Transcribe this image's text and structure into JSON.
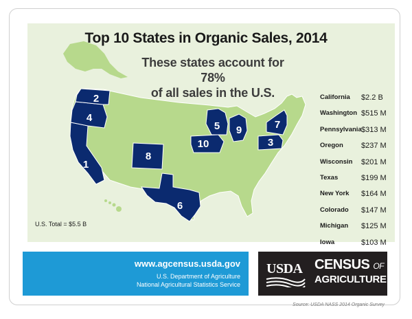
{
  "title": "Top 10 States in Organic Sales, 2014",
  "subtitle_line1": "These states account for 78%",
  "subtitle_line2": "of all sales in the U.S.",
  "colors": {
    "highlight": "#0b2a6f",
    "land": "#b7d98c",
    "banner": "#1e9ad6",
    "census_box": "#231f20"
  },
  "rankings": [
    {
      "rank": "1",
      "state": "California",
      "value": "$2.2 B"
    },
    {
      "rank": "2",
      "state": "Washington",
      "value": "$515 M"
    },
    {
      "rank": "3",
      "state": "Pennsylvania",
      "value": "$313 M"
    },
    {
      "rank": "4",
      "state": "Oregon",
      "value": "$237 M"
    },
    {
      "rank": "5",
      "state": "Wisconsin",
      "value": "$201 M"
    },
    {
      "rank": "6",
      "state": "Texas",
      "value": "$199 M"
    },
    {
      "rank": "7",
      "state": "New York",
      "value": "$164 M"
    },
    {
      "rank": "8",
      "state": "Colorado",
      "value": "$147 M"
    },
    {
      "rank": "9",
      "state": "Michigan",
      "value": "$125 M"
    },
    {
      "rank": "10",
      "state": "Iowa",
      "value": "$103 M"
    }
  ],
  "us_total": "U.S. Total = $5.5 B",
  "banner": {
    "url": "www.agcensus.usda.gov",
    "org_line1": "U.S. Department of Agriculture",
    "org_line2": "National Agricultural Statistics Service"
  },
  "logo": {
    "usda": "USDA",
    "census": "CENSUS",
    "of": "OF",
    "agriculture": "AGRICULTURE"
  },
  "source": "Source: USDA NASS 2014 Organic Survey"
}
